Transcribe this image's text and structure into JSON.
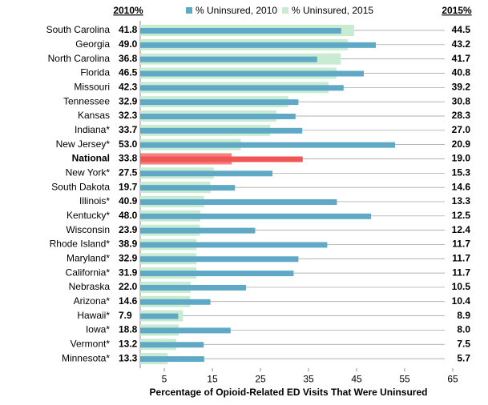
{
  "chart_data": {
    "type": "bar",
    "orientation": "horizontal",
    "x_label": "Percentage of Opioid-Related ED Visits That Were Uninsured",
    "left_header": "2010%",
    "right_header": "2015%",
    "categories": [
      "South Carolina",
      "Georgia",
      "North Carolina",
      "Florida",
      "Missouri",
      "Tennessee",
      "Kansas",
      "Indiana*",
      "New Jersey*",
      "National",
      "New York*",
      "South Dakota",
      "Illinois*",
      "Kentucky*",
      "Wisconsin",
      "Rhode Island*",
      "Maryland*",
      "California*",
      "Nebraska",
      "Arizona*",
      "Hawaii*",
      "Iowa*",
      "Vermont*",
      "Minnesota*"
    ],
    "series": [
      {
        "name": "% Uninsured, 2010",
        "color": "#5fa9c6",
        "values": [
          41.8,
          49,
          36.8,
          46.5,
          42.3,
          32.9,
          32.3,
          33.7,
          53,
          33.8,
          27.5,
          19.7,
          40.9,
          48,
          23.9,
          38.9,
          32.9,
          31.9,
          22,
          14.6,
          7.9,
          18.8,
          13.2,
          13.3
        ],
        "value_labels": [
          "41.8",
          "49.0",
          "36.8",
          "46.5",
          "42.3",
          "32.9",
          "32.3",
          "33.7",
          "53.0",
          "33.8",
          "27.5",
          "19.7",
          "40.9",
          "48.0",
          "23.9",
          "38.9",
          "32.9",
          "31.9",
          "22.0",
          "14.6",
          "7.9",
          "18.8",
          "13.2",
          "13.3"
        ]
      },
      {
        "name": "% Uninsured, 2015",
        "color": "#c8ecd2",
        "values": [
          44.5,
          43.2,
          41.7,
          40.8,
          39.2,
          30.8,
          28.3,
          27,
          20.9,
          19,
          15.3,
          14.6,
          13.3,
          12.5,
          12.4,
          11.7,
          11.7,
          11.7,
          10.5,
          10.4,
          8.9,
          8,
          7.5,
          5.7
        ],
        "value_labels": [
          "44.5",
          "43.2",
          "41.7",
          "40.8",
          "39.2",
          "30.8",
          "28.3",
          "27.0",
          "20.9",
          "19.0",
          "15.3",
          "14.6",
          "13.3",
          "12.5",
          "12.4",
          "11.7",
          "11.7",
          "11.7",
          "10.5",
          "10.4",
          "8.9",
          "8.0",
          "7.5",
          "5.7"
        ]
      }
    ],
    "highlight_index": 9,
    "highlight_color": "#f05656",
    "xlim": [
      0,
      65
    ],
    "xticks": [
      5,
      15,
      25,
      35,
      45,
      55,
      65
    ],
    "grid": true
  }
}
